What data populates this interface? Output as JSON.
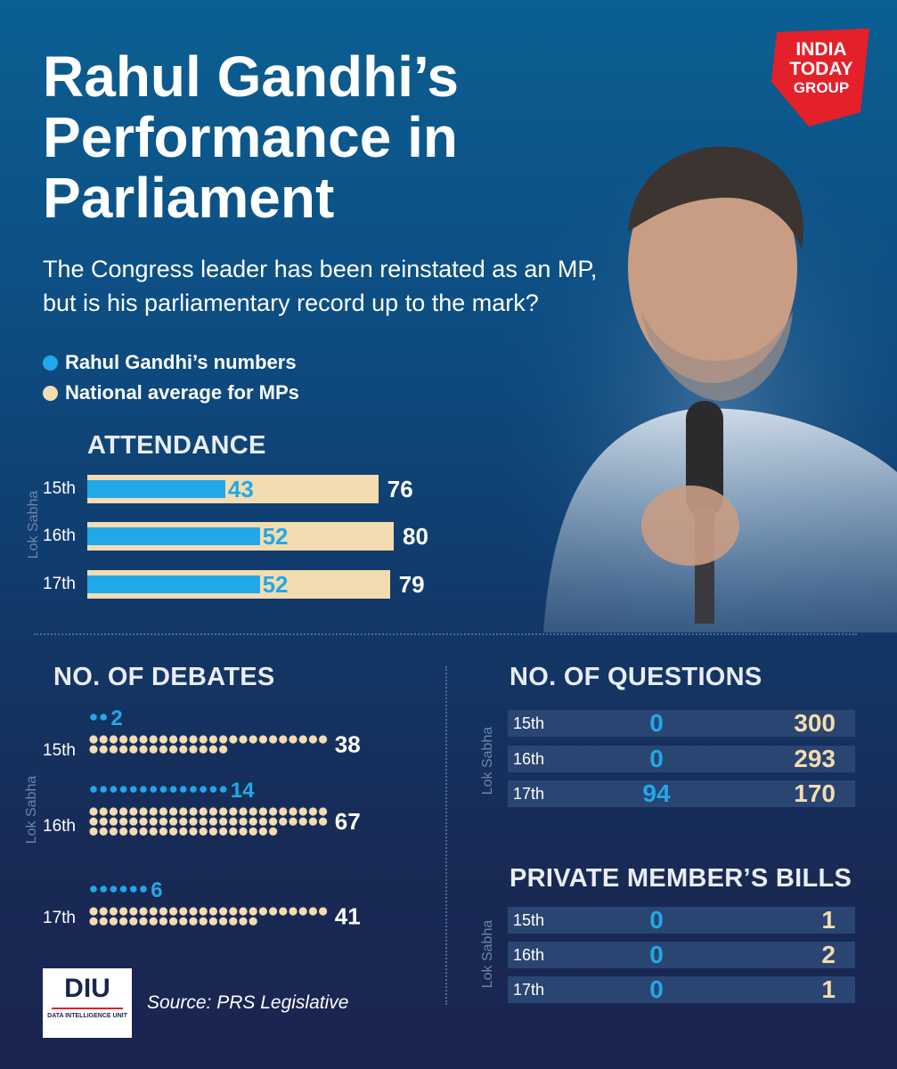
{
  "title": "Rahul Gandhi’s Performance in Parliament",
  "subtitle": "The Congress leader has been reinstated as an MP, but is his parliamentary record up to the mark?",
  "legend": [
    {
      "label": "Rahul Gandhi’s numbers",
      "color": "#21a8e8"
    },
    {
      "label": "National average for MPs",
      "color": "#f3dcb0"
    }
  ],
  "brand": {
    "line1": "INDIA",
    "line2": "TODAY",
    "line3": "GROUP"
  },
  "side_label": "Lok Sabha",
  "source": "Source: PRS Legislative",
  "diu_logo": {
    "big": "DIU",
    "small": "DATA INTELLIGENCE UNIT"
  },
  "chart_data": [
    {
      "type": "bar",
      "title": "ATTENDANCE",
      "categories": [
        "15th",
        "16th",
        "17th"
      ],
      "series": [
        {
          "name": "Rahul Gandhi’s numbers",
          "values": [
            43,
            52,
            52
          ],
          "color": "#21a8e8"
        },
        {
          "name": "National average for MPs",
          "values": [
            76,
            80,
            79
          ],
          "color": "#f3dcb0"
        }
      ],
      "value_labels": {
        "rg": [
          "43",
          "52",
          "52"
        ],
        "nat": [
          "76",
          "80",
          "79"
        ]
      }
    },
    {
      "type": "scatter",
      "title": "NO. OF DEBATES",
      "categories": [
        "15th",
        "16th",
        "17th"
      ],
      "series": [
        {
          "name": "Rahul Gandhi’s numbers",
          "values": [
            2,
            14,
            6
          ],
          "color": "#21a8e8"
        },
        {
          "name": "National average for MPs",
          "values": [
            38,
            67,
            41
          ],
          "color": "#f3dcb0"
        }
      ],
      "value_labels": {
        "rg": [
          "2",
          "14",
          "6"
        ],
        "nat": [
          "38",
          "67",
          "41"
        ]
      }
    },
    {
      "type": "table",
      "title": "NO. OF  QUESTIONS",
      "categories": [
        "15th",
        "16th",
        "17th"
      ],
      "series": [
        {
          "name": "Rahul Gandhi’s numbers",
          "values": [
            0,
            0,
            94
          ]
        },
        {
          "name": "National average for MPs",
          "values": [
            300,
            293,
            170
          ]
        }
      ],
      "value_labels": {
        "rg": [
          "0",
          "0",
          "94"
        ],
        "nat": [
          "300",
          "293",
          "170"
        ]
      }
    },
    {
      "type": "table",
      "title": "PRIVATE MEMBER’S BILLS",
      "categories": [
        "15th",
        "16th",
        "17th"
      ],
      "series": [
        {
          "name": "Rahul Gandhi’s numbers",
          "values": [
            0,
            0,
            0
          ]
        },
        {
          "name": "National average for MPs",
          "values": [
            1,
            2,
            1
          ]
        }
      ],
      "value_labels": {
        "rg": [
          "0",
          "0",
          "0"
        ],
        "nat": [
          "1",
          "2",
          "1"
        ]
      }
    }
  ]
}
